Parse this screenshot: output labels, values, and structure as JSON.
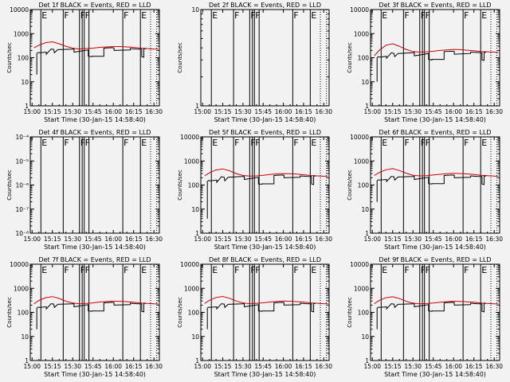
{
  "chart_data": [
    {
      "type": "line",
      "title": "Det 1f BLACK = Events, RED = LLD",
      "xlabel": "Start Time (30-Jan-15 14:58:40)",
      "ylabel": "Counts/sec",
      "x_ticks": [
        "15:00",
        "15:15",
        "15:30",
        "15:45",
        "16:00",
        "16:15",
        "16:30"
      ],
      "y_ticks": [
        "1",
        "10",
        "100",
        "1000",
        "10000"
      ],
      "ylim": [
        1,
        10000
      ],
      "yscale": "log",
      "flag_labels": [
        "E",
        "F",
        "F",
        "F",
        "F",
        "E"
      ],
      "series": [
        {
          "color": "#cc0000",
          "x_min": [
            1.5,
            5,
            10,
            15,
            20,
            25,
            30,
            35,
            40,
            45,
            50,
            55,
            60,
            65,
            70,
            75,
            80,
            85,
            90,
            93
          ],
          "y": [
            260,
            330,
            420,
            460,
            380,
            300,
            250,
            230,
            240,
            250,
            270,
            280,
            290,
            290,
            280,
            270,
            250,
            240,
            230,
            225
          ]
        },
        {
          "color": "#000000",
          "x_min": [
            3.5,
            3.5,
            4.5,
            5.5,
            10.5,
            10.5,
            14,
            16,
            16.5,
            19,
            29.5,
            31,
            31,
            41.5,
            41.5,
            44,
            44,
            53,
            53,
            59,
            60.5,
            60.5,
            72.5,
            72.5,
            77,
            81,
            81,
            82.5,
            82.5,
            84
          ],
          "y": [
            20,
            150,
            165,
            160,
            170,
            140,
            230,
            220,
            160,
            215,
            225,
            230,
            170,
            210,
            115,
            110,
            115,
            115,
            250,
            260,
            255,
            200,
            210,
            240,
            230,
            225,
            110,
            105,
            240,
            235
          ]
        }
      ]
    },
    {
      "type": "line",
      "title": "Det 2f BLACK = Events, RED = LLD",
      "xlabel": "Start Time (30-Jan-15 14:58:40)",
      "ylabel": "Counts/sec",
      "x_ticks": [
        "15:00",
        "15:15",
        "15:30",
        "15:45",
        "16:00",
        "16:15",
        "16:30"
      ],
      "y_ticks": [
        "1",
        "10"
      ],
      "ylim": [
        1,
        10
      ],
      "yscale": "log",
      "flag_labels": [
        "E",
        "F",
        "F",
        "F",
        "F",
        "E"
      ],
      "series": []
    },
    {
      "type": "line",
      "title": "Det 3f BLACK = Events, RED = LLD",
      "xlabel": "Start Time (30-Jan-15 14:58:40)",
      "ylabel": "Counts/sec",
      "x_ticks": [
        "15:00",
        "15:15",
        "15:30",
        "15:45",
        "16:00",
        "16:15",
        "16:30"
      ],
      "y_ticks": [
        "1",
        "10",
        "100",
        "1000",
        "10000"
      ],
      "ylim": [
        1,
        10000
      ],
      "yscale": "log",
      "flag_labels": [
        "E",
        "F",
        "F",
        "F",
        "F",
        "E"
      ],
      "series": [
        {
          "color": "#cc0000",
          "x_min": [
            1.5,
            5,
            10,
            15,
            20,
            25,
            30,
            35,
            40,
            45,
            50,
            55,
            60,
            65,
            70,
            75,
            80,
            85,
            90,
            93
          ],
          "y": [
            120,
            200,
            330,
            380,
            300,
            220,
            180,
            170,
            175,
            185,
            200,
            210,
            220,
            215,
            205,
            195,
            180,
            175,
            170,
            165
          ]
        },
        {
          "color": "#000000",
          "x_min": [
            3.5,
            3.5,
            4.5,
            5.5,
            10.5,
            10.5,
            14,
            16,
            16.5,
            19,
            29.5,
            31,
            31,
            41.5,
            41.5,
            44,
            44,
            53,
            53,
            59,
            60.5,
            60.5,
            72.5,
            72.5,
            77,
            81,
            81,
            82.5,
            82.5,
            84
          ],
          "y": [
            10,
            100,
            110,
            105,
            115,
            95,
            160,
            150,
            110,
            150,
            160,
            165,
            120,
            150,
            85,
            80,
            85,
            85,
            180,
            185,
            180,
            140,
            150,
            170,
            165,
            160,
            80,
            78,
            170,
            165
          ]
        }
      ]
    },
    {
      "type": "line",
      "title": "Det 4f BLACK = Events, RED = LLD",
      "xlabel": "Start Time (30-Jan-15 14:58:40)",
      "ylabel": "Counts/sec",
      "x_ticks": [
        "15:00",
        "15:15",
        "15:30",
        "15:45",
        "16:00",
        "16:15",
        "16:30"
      ],
      "y_ticks": [
        "10⁻⁸",
        "10⁻⁷",
        "10⁻⁶",
        "10⁻⁵",
        "10⁻⁴"
      ],
      "ylim": [
        1e-08,
        0.0001
      ],
      "yscale": "log",
      "flag_labels": [
        "E",
        "F",
        "F",
        "F",
        "F",
        "E"
      ],
      "series": []
    },
    {
      "type": "line",
      "title": "Det 5f BLACK = Events, RED = LLD",
      "xlabel": "Start Time (30-Jan-15 14:58:40)",
      "ylabel": "Counts/sec",
      "x_ticks": [
        "15:00",
        "15:15",
        "15:30",
        "15:45",
        "16:00",
        "16:15",
        "16:30"
      ],
      "y_ticks": [
        "1",
        "10",
        "100",
        "1000",
        "10000"
      ],
      "ylim": [
        1,
        10000
      ],
      "yscale": "log",
      "flag_labels": [
        "E",
        "F",
        "F",
        "F",
        "F",
        "E"
      ],
      "series": [
        {
          "color": "#cc0000",
          "x_min": [
            1.5,
            5,
            10,
            15,
            20,
            25,
            30,
            35,
            40,
            45,
            50,
            55,
            60,
            65,
            70,
            75,
            80,
            85,
            90,
            93
          ],
          "y": [
            240,
            320,
            420,
            470,
            390,
            300,
            250,
            235,
            240,
            255,
            275,
            290,
            300,
            295,
            285,
            270,
            250,
            240,
            232,
            228
          ]
        },
        {
          "color": "#000000",
          "x_min": [
            3.5,
            3.5,
            4.5,
            5.5,
            10.5,
            10.5,
            14,
            16,
            16.5,
            19,
            29.5,
            31,
            31,
            41.5,
            41.5,
            44,
            44,
            53,
            53,
            59,
            60.5,
            60.5,
            72.5,
            72.5,
            77,
            81,
            81,
            82.5,
            82.5,
            84
          ],
          "y": [
            4,
            140,
            155,
            150,
            160,
            130,
            220,
            210,
            150,
            210,
            225,
            230,
            170,
            210,
            110,
            108,
            112,
            112,
            250,
            260,
            255,
            200,
            210,
            240,
            230,
            225,
            110,
            105,
            240,
            235
          ]
        }
      ]
    },
    {
      "type": "line",
      "title": "Det 6f BLACK = Events, RED = LLD",
      "xlabel": "Start Time (30-Jan-15 14:58:40)",
      "ylabel": "Counts/sec",
      "x_ticks": [
        "15:00",
        "15:15",
        "15:30",
        "15:45",
        "16:00",
        "16:15",
        "16:30"
      ],
      "y_ticks": [
        "1",
        "10",
        "100",
        "1000",
        "10000"
      ],
      "ylim": [
        1,
        10000
      ],
      "yscale": "log",
      "flag_labels": [
        "E",
        "F",
        "F",
        "F",
        "F",
        "E"
      ],
      "series": [
        {
          "color": "#cc0000",
          "x_min": [
            1.5,
            5,
            10,
            15,
            20,
            25,
            30,
            35,
            40,
            45,
            50,
            55,
            60,
            65,
            70,
            75,
            80,
            85,
            90,
            93
          ],
          "y": [
            250,
            330,
            430,
            480,
            400,
            310,
            255,
            240,
            245,
            260,
            280,
            295,
            305,
            300,
            290,
            275,
            255,
            245,
            235,
            230
          ]
        },
        {
          "color": "#000000",
          "x_min": [
            3.5,
            3.5,
            4.5,
            5.5,
            10.5,
            10.5,
            14,
            16,
            16.5,
            19,
            29.5,
            31,
            31,
            41.5,
            41.5,
            44,
            44,
            53,
            53,
            59,
            60.5,
            60.5,
            72.5,
            72.5,
            77,
            81,
            81,
            82.5,
            82.5,
            84
          ],
          "y": [
            20,
            150,
            165,
            160,
            170,
            140,
            230,
            220,
            160,
            215,
            225,
            230,
            170,
            210,
            115,
            110,
            115,
            115,
            250,
            260,
            255,
            200,
            210,
            240,
            230,
            225,
            110,
            105,
            240,
            235
          ]
        }
      ]
    },
    {
      "type": "line",
      "title": "Det 7f BLACK = Events, RED = LLD",
      "xlabel": "Start Time (30-Jan-15 14:58:40)",
      "ylabel": "Counts/sec",
      "x_ticks": [
        "15:00",
        "15:15",
        "15:30",
        "15:45",
        "16:00",
        "16:15",
        "16:30"
      ],
      "y_ticks": [
        "1",
        "10",
        "100",
        "1000",
        "10000"
      ],
      "ylim": [
        1,
        10000
      ],
      "yscale": "log",
      "flag_labels": [
        "E",
        "F",
        "F",
        "F",
        "F",
        "E"
      ],
      "series": [
        {
          "color": "#cc0000",
          "x_min": [
            1.5,
            5,
            10,
            15,
            20,
            25,
            30,
            35,
            40,
            45,
            50,
            55,
            60,
            65,
            70,
            75,
            80,
            85,
            90,
            93
          ],
          "y": [
            230,
            310,
            410,
            450,
            380,
            290,
            245,
            228,
            235,
            248,
            268,
            282,
            292,
            288,
            278,
            265,
            245,
            236,
            228,
            224
          ]
        },
        {
          "color": "#000000",
          "x_min": [
            3.5,
            3.5,
            4.5,
            5.5,
            10.5,
            10.5,
            14,
            16,
            16.5,
            19,
            29.5,
            31,
            31,
            41.5,
            41.5,
            44,
            44,
            53,
            53,
            59,
            60.5,
            60.5,
            72.5,
            72.5,
            77,
            81,
            81,
            82.5,
            82.5,
            84
          ],
          "y": [
            20,
            150,
            165,
            160,
            170,
            140,
            230,
            220,
            160,
            215,
            225,
            230,
            170,
            210,
            115,
            110,
            115,
            115,
            250,
            260,
            255,
            200,
            210,
            240,
            230,
            225,
            110,
            105,
            240,
            235
          ]
        }
      ]
    },
    {
      "type": "line",
      "title": "Det 8f BLACK = Events, RED = LLD",
      "xlabel": "Start Time (30-Jan-15 14:58:40)",
      "ylabel": "Counts/sec",
      "x_ticks": [
        "15:00",
        "15:15",
        "15:30",
        "15:45",
        "16:00",
        "16:15",
        "16:30"
      ],
      "y_ticks": [
        "1",
        "10",
        "100",
        "1000",
        "10000"
      ],
      "ylim": [
        1,
        10000
      ],
      "yscale": "log",
      "flag_labels": [
        "E",
        "F",
        "F",
        "F",
        "F",
        "E"
      ],
      "series": [
        {
          "color": "#cc0000",
          "x_min": [
            1.5,
            5,
            10,
            15,
            20,
            25,
            30,
            35,
            40,
            45,
            50,
            55,
            60,
            65,
            70,
            75,
            80,
            85,
            90,
            93
          ],
          "y": [
            235,
            315,
            415,
            460,
            385,
            295,
            248,
            230,
            238,
            250,
            270,
            285,
            295,
            290,
            280,
            268,
            248,
            238,
            230,
            226
          ]
        },
        {
          "color": "#000000",
          "x_min": [
            3.5,
            3.5,
            4.5,
            5.5,
            10.5,
            10.5,
            14,
            16,
            16.5,
            19,
            29.5,
            31,
            31,
            41.5,
            41.5,
            44,
            44,
            53,
            53,
            59,
            60.5,
            60.5,
            72.5,
            72.5,
            77,
            81,
            81,
            82.5,
            82.5,
            84
          ],
          "y": [
            20,
            150,
            165,
            160,
            170,
            140,
            230,
            220,
            160,
            215,
            225,
            230,
            170,
            210,
            115,
            110,
            115,
            115,
            250,
            260,
            255,
            200,
            210,
            240,
            230,
            225,
            110,
            105,
            240,
            235
          ]
        }
      ]
    },
    {
      "type": "line",
      "title": "Det 9f BLACK = Events, RED = LLD",
      "xlabel": "Start Time (30-Jan-15 14:58:40)",
      "ylabel": "Counts/sec",
      "x_ticks": [
        "15:00",
        "15:15",
        "15:30",
        "15:45",
        "16:00",
        "16:15",
        "16:30"
      ],
      "y_ticks": [
        "1",
        "10",
        "100",
        "1000",
        "10000"
      ],
      "ylim": [
        1,
        10000
      ],
      "yscale": "log",
      "flag_labels": [
        "E",
        "F",
        "F",
        "F",
        "F",
        "E"
      ],
      "series": [
        {
          "color": "#cc0000",
          "x_min": [
            1.5,
            5,
            10,
            15,
            20,
            25,
            30,
            35,
            40,
            45,
            50,
            55,
            60,
            65,
            70,
            75,
            80,
            85,
            90,
            93
          ],
          "y": [
            230,
            310,
            405,
            445,
            375,
            288,
            242,
            226,
            232,
            245,
            265,
            280,
            290,
            286,
            276,
            262,
            243,
            234,
            226,
            222
          ]
        },
        {
          "color": "#000000",
          "x_min": [
            3.5,
            3.5,
            4.5,
            5.5,
            10.5,
            10.5,
            14,
            16,
            16.5,
            19,
            29.5,
            31,
            31,
            41.5,
            41.5,
            44,
            44,
            53,
            53,
            59,
            60.5,
            60.5,
            72.5,
            72.5,
            77,
            81,
            81,
            82.5,
            82.5,
            84
          ],
          "y": [
            20,
            150,
            165,
            160,
            170,
            140,
            230,
            220,
            160,
            215,
            225,
            230,
            170,
            210,
            115,
            110,
            115,
            115,
            250,
            260,
            255,
            200,
            210,
            240,
            230,
            225,
            110,
            105,
            240,
            235
          ]
        }
      ]
    }
  ]
}
